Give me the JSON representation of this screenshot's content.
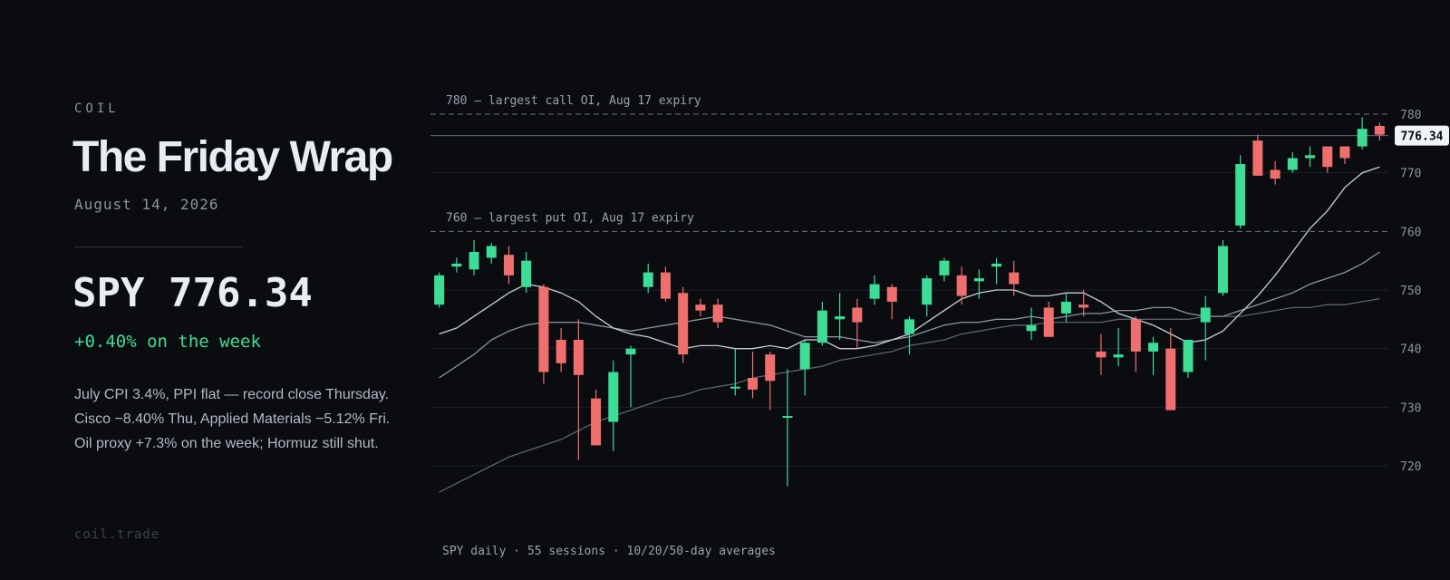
{
  "brand": "COIL",
  "headline": "The Friday Wrap",
  "date": "August 14, 2026",
  "quote": {
    "text": "SPY 776.34",
    "change": "+0.40% on the week"
  },
  "notes": [
    "July CPI 3.4%, PPI flat — record close Thursday.",
    "Cisco −8.40% Thu, Applied Materials −5.12% Fri.",
    "Oil proxy +7.3% on the week; Hormuz still shut."
  ],
  "footer": "coil.trade",
  "colors": {
    "up": "#3ddc97",
    "down": "#ef6f6f",
    "bg": "#0a0c10",
    "accent_text": "#3ddc97"
  },
  "chart_data": {
    "type": "candlestick",
    "caption": "SPY daily · 55 sessions · 10/20/50-day averages",
    "ylim": [
      715,
      782
    ],
    "y_ticks": [
      720,
      730,
      740,
      750,
      760,
      770,
      780
    ],
    "grid": true,
    "last_price": 776.34,
    "last_price_label": "776.34",
    "annotations": [
      {
        "value": 780,
        "text": "780 — largest call OI, Aug 17 expiry"
      },
      {
        "value": 760,
        "text": "760 — largest put OI, Aug 17 expiry"
      }
    ],
    "candles": [
      {
        "o": 747.5,
        "h": 753.0,
        "l": 747.0,
        "c": 752.5
      },
      {
        "o": 754.0,
        "h": 755.5,
        "l": 753.0,
        "c": 754.5
      },
      {
        "o": 753.5,
        "h": 758.5,
        "l": 752.5,
        "c": 756.5
      },
      {
        "o": 755.5,
        "h": 758.0,
        "l": 754.5,
        "c": 757.5
      },
      {
        "o": 756.0,
        "h": 757.5,
        "l": 751.0,
        "c": 752.5
      },
      {
        "o": 750.5,
        "h": 756.5,
        "l": 749.5,
        "c": 755.0
      },
      {
        "o": 750.5,
        "h": 751.0,
        "l": 734.0,
        "c": 736.0
      },
      {
        "o": 741.5,
        "h": 743.5,
        "l": 736.0,
        "c": 737.5
      },
      {
        "o": 741.5,
        "h": 745.0,
        "l": 721.0,
        "c": 735.5
      },
      {
        "o": 731.5,
        "h": 733.0,
        "l": 723.5,
        "c": 723.5
      },
      {
        "o": 727.5,
        "h": 738.0,
        "l": 722.5,
        "c": 736.0
      },
      {
        "o": 739.0,
        "h": 740.5,
        "l": 730.0,
        "c": 740.0
      },
      {
        "o": 750.5,
        "h": 754.5,
        "l": 749.5,
        "c": 753.0
      },
      {
        "o": 753.0,
        "h": 754.0,
        "l": 748.0,
        "c": 748.5
      },
      {
        "o": 749.5,
        "h": 750.5,
        "l": 737.5,
        "c": 739.0
      },
      {
        "o": 747.5,
        "h": 748.5,
        "l": 745.5,
        "c": 746.5
      },
      {
        "o": 747.5,
        "h": 748.5,
        "l": 743.5,
        "c": 744.5
      },
      {
        "o": 733.5,
        "h": 740.0,
        "l": 732.0,
        "c": 733.5
      },
      {
        "o": 735.0,
        "h": 739.5,
        "l": 731.5,
        "c": 733.0
      },
      {
        "o": 739.0,
        "h": 739.5,
        "l": 729.5,
        "c": 734.5
      },
      {
        "o": 728.5,
        "h": 736.5,
        "l": 716.5,
        "c": 728.5
      },
      {
        "o": 736.5,
        "h": 741.5,
        "l": 732.0,
        "c": 741.0
      },
      {
        "o": 741.0,
        "h": 748.0,
        "l": 740.5,
        "c": 746.5
      },
      {
        "o": 745.0,
        "h": 749.5,
        "l": 741.5,
        "c": 745.5
      },
      {
        "o": 747.0,
        "h": 748.5,
        "l": 740.0,
        "c": 744.5
      },
      {
        "o": 748.5,
        "h": 752.5,
        "l": 747.5,
        "c": 751.0
      },
      {
        "o": 750.5,
        "h": 751.0,
        "l": 745.0,
        "c": 748.0
      },
      {
        "o": 742.5,
        "h": 745.5,
        "l": 739.0,
        "c": 745.0
      },
      {
        "o": 747.5,
        "h": 752.5,
        "l": 745.5,
        "c": 752.0
      },
      {
        "o": 752.5,
        "h": 755.5,
        "l": 751.5,
        "c": 755.0
      },
      {
        "o": 752.5,
        "h": 754.0,
        "l": 747.5,
        "c": 749.0
      },
      {
        "o": 751.5,
        "h": 753.5,
        "l": 748.5,
        "c": 752.0
      },
      {
        "o": 754.0,
        "h": 755.5,
        "l": 751.0,
        "c": 754.5
      },
      {
        "o": 753.0,
        "h": 755.0,
        "l": 749.0,
        "c": 751.0
      },
      {
        "o": 743.0,
        "h": 747.0,
        "l": 741.5,
        "c": 744.0
      },
      {
        "o": 747.0,
        "h": 748.0,
        "l": 742.0,
        "c": 742.0
      },
      {
        "o": 746.0,
        "h": 749.5,
        "l": 744.5,
        "c": 748.0
      },
      {
        "o": 747.5,
        "h": 750.0,
        "l": 745.5,
        "c": 747.0
      },
      {
        "o": 739.5,
        "h": 742.5,
        "l": 735.5,
        "c": 738.5
      },
      {
        "o": 738.5,
        "h": 743.5,
        "l": 737.0,
        "c": 739.0
      },
      {
        "o": 745.0,
        "h": 745.5,
        "l": 736.0,
        "c": 739.5
      },
      {
        "o": 739.5,
        "h": 742.0,
        "l": 735.5,
        "c": 741.0
      },
      {
        "o": 740.0,
        "h": 743.5,
        "l": 729.5,
        "c": 729.5
      },
      {
        "o": 736.0,
        "h": 741.5,
        "l": 735.0,
        "c": 741.5
      },
      {
        "o": 744.5,
        "h": 749.0,
        "l": 738.0,
        "c": 747.0
      },
      {
        "o": 749.5,
        "h": 758.5,
        "l": 749.0,
        "c": 757.5
      },
      {
        "o": 761.0,
        "h": 773.0,
        "l": 760.5,
        "c": 771.5
      },
      {
        "o": 775.5,
        "h": 776.5,
        "l": 769.5,
        "c": 769.5
      },
      {
        "o": 770.5,
        "h": 772.0,
        "l": 768.0,
        "c": 769.0
      },
      {
        "o": 770.5,
        "h": 773.5,
        "l": 770.0,
        "c": 772.5
      },
      {
        "o": 772.5,
        "h": 774.5,
        "l": 771.0,
        "c": 773.0
      },
      {
        "o": 774.5,
        "h": 774.5,
        "l": 770.0,
        "c": 771.0
      },
      {
        "o": 774.5,
        "h": 774.5,
        "l": 771.5,
        "c": 772.5
      },
      {
        "o": 774.5,
        "h": 779.5,
        "l": 774.0,
        "c": 777.5
      },
      {
        "o": 778.0,
        "h": 778.5,
        "l": 775.5,
        "c": 776.5
      }
    ],
    "series": [
      {
        "values": [
          742.5,
          743.5,
          745.5,
          747.5,
          749.5,
          751.0,
          750.5,
          749.5,
          748.0,
          745.5,
          743.5,
          742.5,
          742.0,
          741.0,
          740.0,
          740.5,
          740.5,
          740.0,
          740.0,
          740.5,
          740.0,
          741.5,
          741.5,
          740.0,
          740.0,
          740.5,
          741.5,
          742.5,
          744.5,
          746.5,
          748.5,
          749.5,
          750.0,
          750.0,
          749.0,
          749.0,
          749.5,
          749.5,
          748.0,
          746.0,
          745.0,
          744.0,
          742.5,
          741.0,
          741.5,
          743.0,
          746.0,
          749.0,
          752.5,
          756.5,
          760.5,
          763.5,
          767.5,
          770.0,
          771.0
        ],
        "color": "#c9cfd6"
      },
      {
        "values": [
          735.0,
          737.0,
          739.0,
          741.5,
          743.0,
          744.0,
          744.5,
          744.5,
          744.5,
          744.0,
          743.5,
          743.0,
          743.5,
          744.0,
          744.5,
          745.0,
          745.5,
          745.0,
          744.5,
          744.0,
          743.0,
          742.0,
          742.0,
          742.0,
          741.5,
          741.0,
          741.5,
          742.0,
          743.0,
          744.0,
          744.5,
          744.5,
          745.0,
          745.0,
          745.5,
          745.0,
          745.5,
          746.0,
          746.0,
          746.5,
          746.5,
          747.0,
          747.0,
          746.0,
          745.5,
          745.5,
          746.5,
          747.5,
          748.5,
          749.5,
          751.0,
          752.0,
          753.0,
          754.5,
          756.5
        ],
        "color": "#8b949e"
      },
      {
        "values": [
          null,
          null,
          null,
          null,
          null,
          null,
          null,
          null,
          null,
          null,
          null,
          null,
          null,
          null,
          null,
          null,
          null,
          null,
          null,
          null,
          null,
          null,
          null,
          null,
          null,
          null,
          null,
          null,
          null,
          null,
          null,
          null,
          null,
          null,
          null,
          null,
          null,
          null,
          null,
          null,
          null,
          null,
          null,
          null,
          null,
          null,
          null,
          null,
          null,
          null,
          null,
          null,
          null,
          null,
          null
        ],
        "color": "#5c636b"
      }
    ],
    "ma50": [
      715.5,
      717.0,
      718.5,
      720.0,
      721.5,
      722.5,
      723.5,
      724.5,
      726.0,
      727.5,
      728.5,
      729.5,
      730.5,
      731.5,
      732.0,
      733.0,
      733.5,
      734.0,
      735.0,
      735.5,
      736.0,
      736.5,
      737.0,
      738.0,
      738.5,
      739.0,
      739.5,
      740.5,
      741.0,
      741.5,
      742.5,
      743.0,
      743.5,
      744.0,
      744.0,
      744.5,
      744.5,
      744.5,
      744.5,
      745.0,
      745.0,
      745.0,
      745.0,
      745.0,
      745.5,
      745.5,
      745.5,
      746.0,
      746.5,
      747.0,
      747.0,
      747.5,
      747.5,
      748.0,
      748.5
    ]
  }
}
